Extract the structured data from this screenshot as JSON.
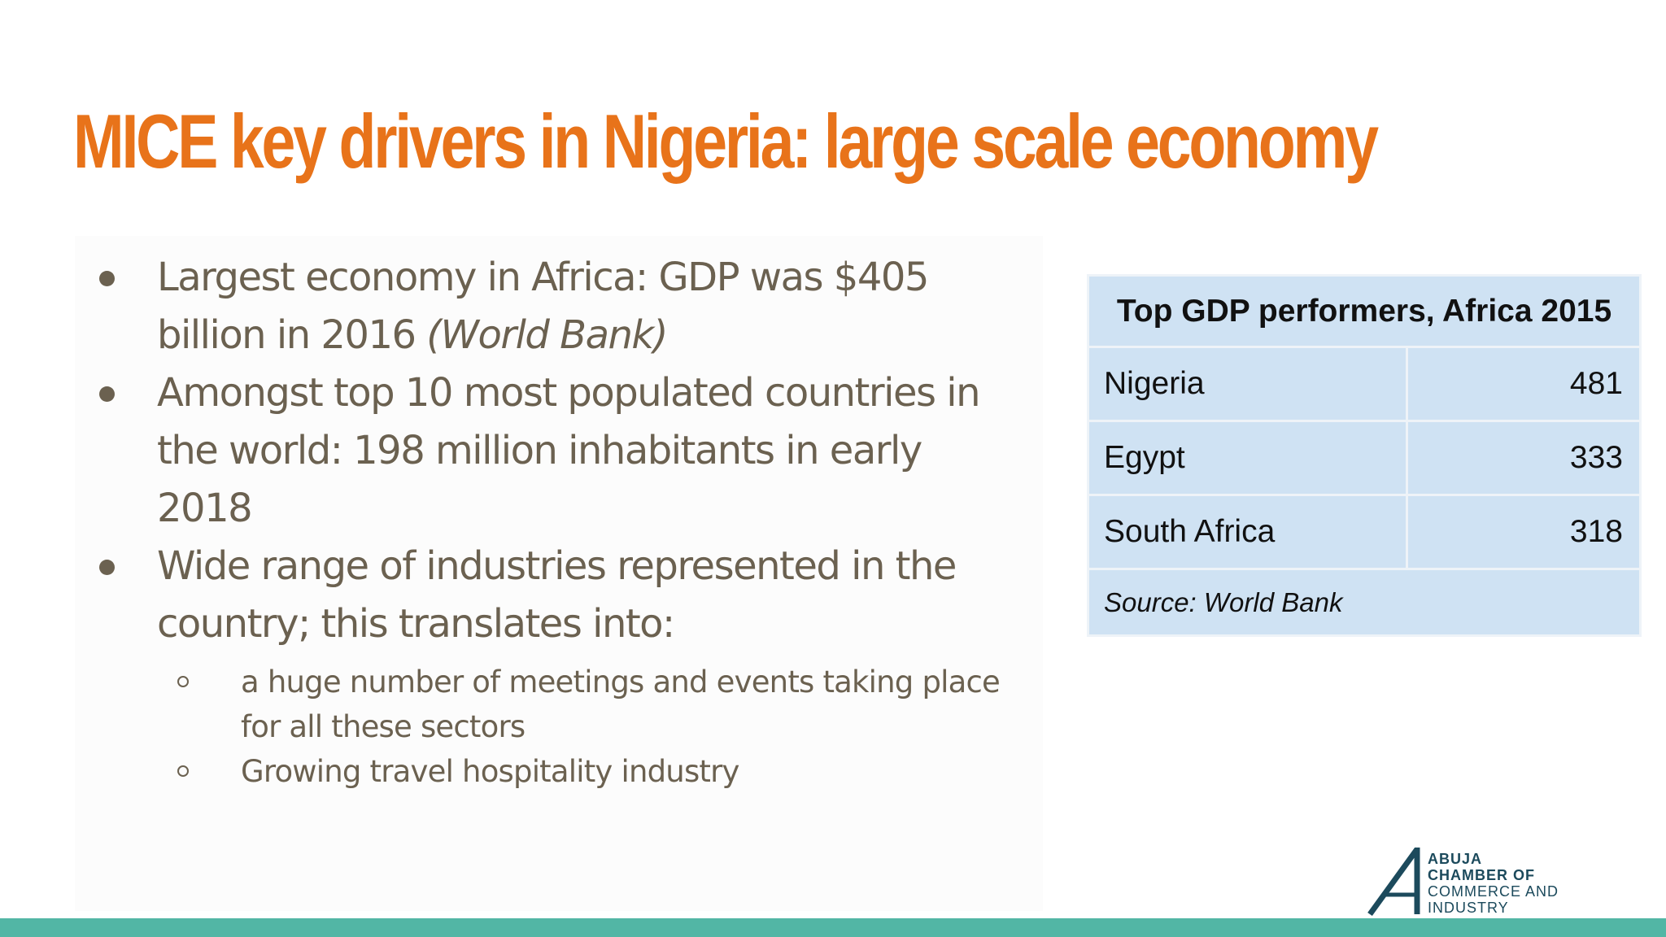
{
  "slide": {
    "title": "MICE key drivers in Nigeria: large scale economy"
  },
  "bullets": [
    {
      "text": "Largest economy in Africa: GDP was $405 billion in 2016",
      "emphasis": "(World Bank)"
    },
    {
      "text": "Amongst top 10 most populated countries in the world: 198 million inhabitants in early 2018"
    },
    {
      "text": "Wide range of industries represented in the country; this translates into:",
      "sub_bullets": [
        "a huge number of meetings and events taking place for all these sectors",
        "Growing travel hospitality industry"
      ]
    }
  ],
  "table": {
    "title": "Top GDP performers, Africa 2015",
    "rows": [
      {
        "country": "Nigeria",
        "value": "481"
      },
      {
        "country": "Egypt",
        "value": "333"
      },
      {
        "country": "South Africa",
        "value": "318"
      }
    ],
    "source": "Source: World Bank"
  },
  "logo": {
    "lines": [
      "ABUJA",
      "CHAMBER OF",
      "COMMERCE AND",
      "INDUSTRY"
    ],
    "color": "#1c4a5c"
  },
  "colors": {
    "title": "#e8731a",
    "body_text": "#6b6150",
    "table_fill": "#cfe2f3",
    "bottom_bar": "#52b6a5"
  }
}
